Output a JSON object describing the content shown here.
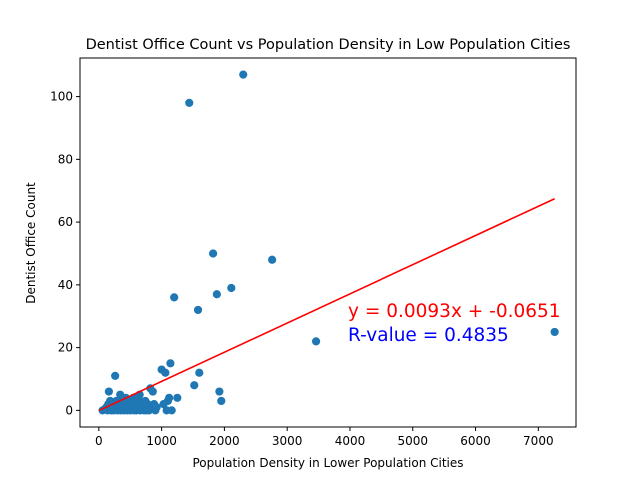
{
  "chart_data": {
    "type": "scatter",
    "title": "Dentist Office Count vs Population Density in Low Population Cities",
    "xlabel": "Population Density in Lower Population Cities",
    "ylabel": "Dentist Office Count",
    "xlim": [
      -300,
      7600
    ],
    "ylim": [
      -5.3,
      112.3
    ],
    "xticks": [
      0,
      1000,
      2000,
      3000,
      4000,
      5000,
      6000,
      7000
    ],
    "yticks": [
      0,
      20,
      40,
      60,
      80,
      100
    ],
    "grid": false,
    "colors": {
      "points": "#1f77b4",
      "regression": "#ff0000",
      "r_text": "#0000ff"
    },
    "points": [
      [
        60,
        0
      ],
      [
        100,
        0.5
      ],
      [
        120,
        1
      ],
      [
        140,
        0
      ],
      [
        150,
        2
      ],
      [
        160,
        6
      ],
      [
        180,
        3
      ],
      [
        200,
        1
      ],
      [
        200,
        0
      ],
      [
        220,
        2
      ],
      [
        240,
        0
      ],
      [
        250,
        1
      ],
      [
        260,
        11
      ],
      [
        280,
        3
      ],
      [
        300,
        0
      ],
      [
        300,
        2
      ],
      [
        320,
        1
      ],
      [
        340,
        5
      ],
      [
        350,
        0
      ],
      [
        360,
        3
      ],
      [
        380,
        1
      ],
      [
        400,
        0
      ],
      [
        420,
        2
      ],
      [
        430,
        4
      ],
      [
        450,
        0
      ],
      [
        460,
        1
      ],
      [
        480,
        3
      ],
      [
        500,
        0
      ],
      [
        520,
        2
      ],
      [
        540,
        1
      ],
      [
        550,
        4
      ],
      [
        560,
        0
      ],
      [
        580,
        2
      ],
      [
        600,
        0
      ],
      [
        620,
        1
      ],
      [
        640,
        3
      ],
      [
        650,
        5
      ],
      [
        660,
        0
      ],
      [
        680,
        2
      ],
      [
        700,
        1
      ],
      [
        720,
        0
      ],
      [
        740,
        3
      ],
      [
        750,
        1
      ],
      [
        760,
        0
      ],
      [
        780,
        2
      ],
      [
        800,
        0
      ],
      [
        820,
        7
      ],
      [
        840,
        1
      ],
      [
        860,
        6
      ],
      [
        880,
        2
      ],
      [
        900,
        0
      ],
      [
        920,
        1
      ],
      [
        1000,
        13
      ],
      [
        1030,
        2
      ],
      [
        1060,
        12
      ],
      [
        1080,
        0
      ],
      [
        1100,
        3
      ],
      [
        1120,
        4
      ],
      [
        1140,
        15
      ],
      [
        1160,
        0
      ],
      [
        1200,
        36
      ],
      [
        1250,
        4
      ],
      [
        1440,
        98
      ],
      [
        1520,
        8
      ],
      [
        1580,
        32
      ],
      [
        1600,
        12
      ],
      [
        1820,
        50
      ],
      [
        1880,
        37
      ],
      [
        1920,
        6
      ],
      [
        1950,
        3
      ],
      [
        2110,
        39
      ],
      [
        2300,
        107
      ],
      [
        2760,
        48
      ],
      [
        3460,
        22
      ],
      [
        7260,
        25
      ]
    ],
    "regression": {
      "slope": 0.0093,
      "intercept": -0.0651,
      "x_range": [
        0,
        7260
      ]
    },
    "annotations": {
      "equation": "y = 0.0093x + -0.0651",
      "r_value": "R-value = 0.4835"
    }
  }
}
